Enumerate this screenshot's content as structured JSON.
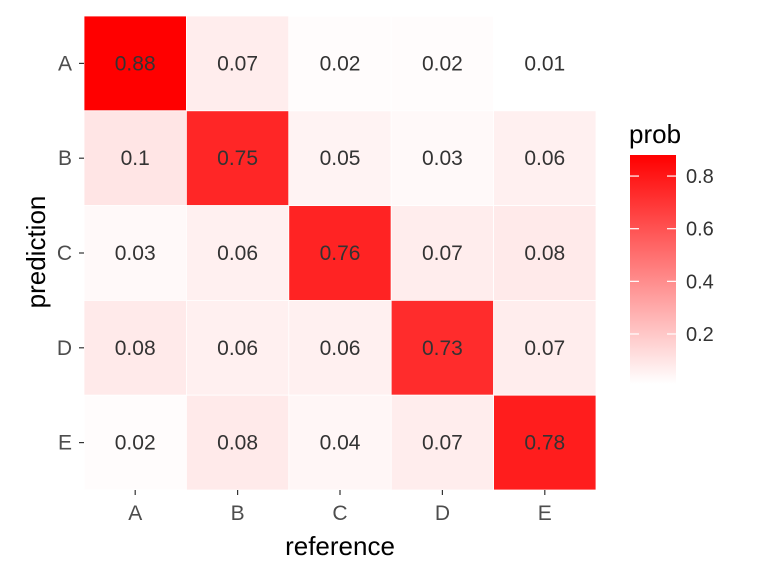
{
  "chart_data": {
    "type": "heatmap",
    "x_categories": [
      "A",
      "B",
      "C",
      "D",
      "E"
    ],
    "y_categories": [
      "A",
      "B",
      "C",
      "D",
      "E"
    ],
    "xlabel": "reference",
    "ylabel": "prediction",
    "values": [
      [
        0.88,
        0.07,
        0.02,
        0.02,
        0.01
      ],
      [
        0.1,
        0.75,
        0.05,
        0.03,
        0.06
      ],
      [
        0.03,
        0.06,
        0.76,
        0.07,
        0.08
      ],
      [
        0.08,
        0.06,
        0.06,
        0.73,
        0.07
      ],
      [
        0.02,
        0.08,
        0.04,
        0.07,
        0.78
      ]
    ],
    "legend": {
      "title": "prob",
      "ticks": [
        0.2,
        0.4,
        0.6,
        0.8
      ],
      "tick_labels": [
        "0.2",
        "0.4",
        "0.6",
        "0.8"
      ],
      "range": [
        0.01,
        0.88
      ],
      "low_color": "#ffffff",
      "high_color": "#ff0000"
    },
    "grid": false
  }
}
